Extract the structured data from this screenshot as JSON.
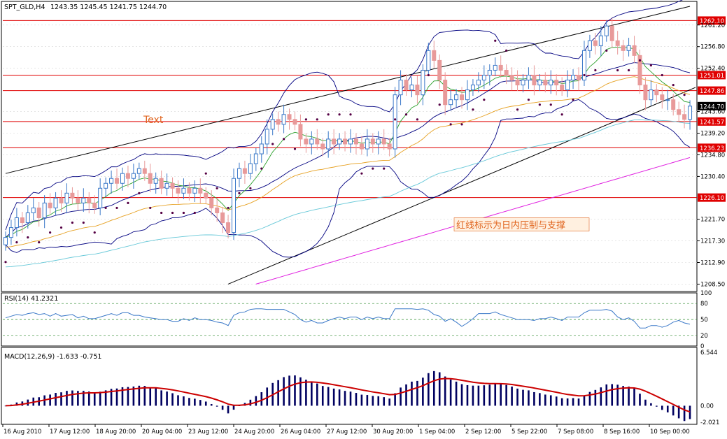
{
  "header": {
    "symbol": "SPT_GLD,H4",
    "ohlc": "1243.35 1245.45 1241.75 1244.70"
  },
  "annotations": {
    "text_label": "Text",
    "note": "红线标示为日内压制与支撑"
  },
  "colors": {
    "bull": "#3a78c8",
    "bear": "#e89a9a",
    "resistance": "#e00000",
    "channel": "#000000",
    "bollinger": "#000080",
    "sar": "#550044",
    "ma_fast": "#2ca02c",
    "ma_mid": "#e6a020",
    "ma_slow": "#66c8d8",
    "ma_long": "#e020e0",
    "rsi": "#3a78c8",
    "macd_hist": "#000060",
    "macd_signal": "#cc0000",
    "note": "#e0641e"
  },
  "chart_data": [
    {
      "type": "candlestick",
      "ylim": [
        1207.0,
        1266.0
      ],
      "y_ticks": [
        1261.2,
        1256.8,
        1252.4,
        1243.6,
        1239.2,
        1234.8,
        1230.4,
        1221.7,
        1217.3,
        1212.9,
        1208.5
      ],
      "current_price": 1244.7,
      "horizontal_levels": [
        1262.1,
        1251.01,
        1247.86,
        1241.57,
        1236.23,
        1226.1
      ],
      "x_labels": [
        "16 Aug 2010",
        "17 Aug 12:00",
        "18 Aug 20:00",
        "20 Aug 04:00",
        "23 Aug 12:00",
        "24 Aug 20:00",
        "26 Aug 04:00",
        "27 Aug 12:00",
        "30 Aug 20:00",
        "1 Sep 04:00",
        "2 Sep 12:00",
        "5 Sep 22:00",
        "7 Sep 08:00",
        "8 Sep 16:00",
        "10 Sep 00:00"
      ],
      "bar_count": 124,
      "close": [
        1218,
        1220,
        1222,
        1221,
        1223,
        1224,
        1222,
        1225,
        1224,
        1226,
        1225,
        1227,
        1226,
        1225,
        1226,
        1225,
        1224,
        1228,
        1229,
        1230,
        1229,
        1231,
        1230,
        1231,
        1232,
        1231,
        1229,
        1230,
        1228,
        1229,
        1228,
        1227,
        1228,
        1227,
        1228,
        1227,
        1226,
        1224,
        1223,
        1221,
        1219,
        1230,
        1232,
        1231,
        1233,
        1235,
        1237,
        1240,
        1242,
        1241,
        1243,
        1242,
        1241,
        1238,
        1237,
        1238,
        1237,
        1236,
        1238,
        1237,
        1238,
        1237,
        1238,
        1237,
        1236,
        1238,
        1237,
        1238,
        1237,
        1236,
        1247,
        1250,
        1248,
        1249,
        1247,
        1252,
        1256,
        1254,
        1250,
        1245,
        1246,
        1247,
        1246,
        1248,
        1249,
        1250,
        1251,
        1252,
        1253,
        1252,
        1251,
        1250,
        1249,
        1250,
        1251,
        1249,
        1250,
        1249,
        1250,
        1249,
        1248,
        1250,
        1251,
        1250,
        1256,
        1258,
        1257,
        1259,
        1261,
        1258,
        1257,
        1256,
        1257,
        1255,
        1249,
        1246,
        1248,
        1247,
        1246,
        1246,
        1244,
        1243,
        1242,
        1244.7
      ],
      "channel_upper": [
        [
          0,
          1231.0
        ],
        [
          123,
          1265.0
        ]
      ],
      "channel_lower": [
        [
          40,
          1208.5
        ],
        [
          124,
          1248.5
        ]
      ],
      "text_label_price": 1242,
      "note_price": 1220
    },
    {
      "type": "line",
      "title": "RSI(14) 41.2321",
      "ylim": [
        0,
        100
      ],
      "y_ticks": [
        100,
        80,
        50,
        20,
        0
      ],
      "levels": [
        80,
        50,
        20
      ],
      "last": 41.2321
    },
    {
      "type": "bar",
      "title": "MACD(12,26,9) -1.633 -0.751",
      "y_ticks": [
        6.544,
        0.0,
        -2.021
      ],
      "ylim": [
        -2.021,
        6.544
      ],
      "macd_last": -1.633,
      "signal_last": -0.751
    }
  ]
}
